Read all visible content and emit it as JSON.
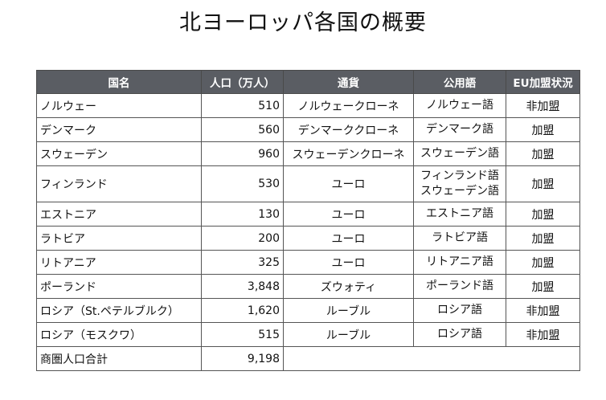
{
  "title": "北ヨーロッパ各国の概要",
  "table": {
    "headers": [
      "国名",
      "人口（万人）",
      "通貨",
      "公用語",
      "EU加盟状況"
    ],
    "rows": [
      {
        "country": "ノルウェー",
        "population": "510",
        "currency": "ノルウェークローネ",
        "language": [
          "ノルウェー語"
        ],
        "eu": "非加盟"
      },
      {
        "country": "デンマーク",
        "population": "560",
        "currency": "デンマーククローネ",
        "language": [
          "デンマーク語"
        ],
        "eu": "加盟"
      },
      {
        "country": "スウェーデン",
        "population": "960",
        "currency": "スウェーデンクローネ",
        "language": [
          "スウェーデン語"
        ],
        "eu": "加盟"
      },
      {
        "country": "フィンランド",
        "population": "530",
        "currency": "ユーロ",
        "language": [
          "フィンランド語",
          "スウェーデン語"
        ],
        "eu": "加盟"
      },
      {
        "country": "エストニア",
        "population": "130",
        "currency": "ユーロ",
        "language": [
          "エストニア語"
        ],
        "eu": "加盟"
      },
      {
        "country": "ラトビア",
        "population": "200",
        "currency": "ユーロ",
        "language": [
          "ラトビア語"
        ],
        "eu": "加盟"
      },
      {
        "country": "リトアニア",
        "population": "325",
        "currency": "ユーロ",
        "language": [
          "リトアニア語"
        ],
        "eu": "加盟"
      },
      {
        "country": "ポーランド",
        "population": "3,848",
        "currency": "ズウォティ",
        "language": [
          "ポーランド語"
        ],
        "eu": "加盟"
      },
      {
        "country": "ロシア（St.ペテルブルク）",
        "population": "1,620",
        "currency": "ルーブル",
        "language": [
          "ロシア語"
        ],
        "eu": "非加盟"
      },
      {
        "country": "ロシア（モスクワ）",
        "population": "515",
        "currency": "ルーブル",
        "language": [
          "ロシア語"
        ],
        "eu": "非加盟"
      }
    ],
    "total": {
      "label": "商圏人口合計",
      "population": "9,198"
    }
  },
  "colors": {
    "header_bg": "#5a5d63",
    "header_text": "#ffffff",
    "border": "#555555"
  }
}
